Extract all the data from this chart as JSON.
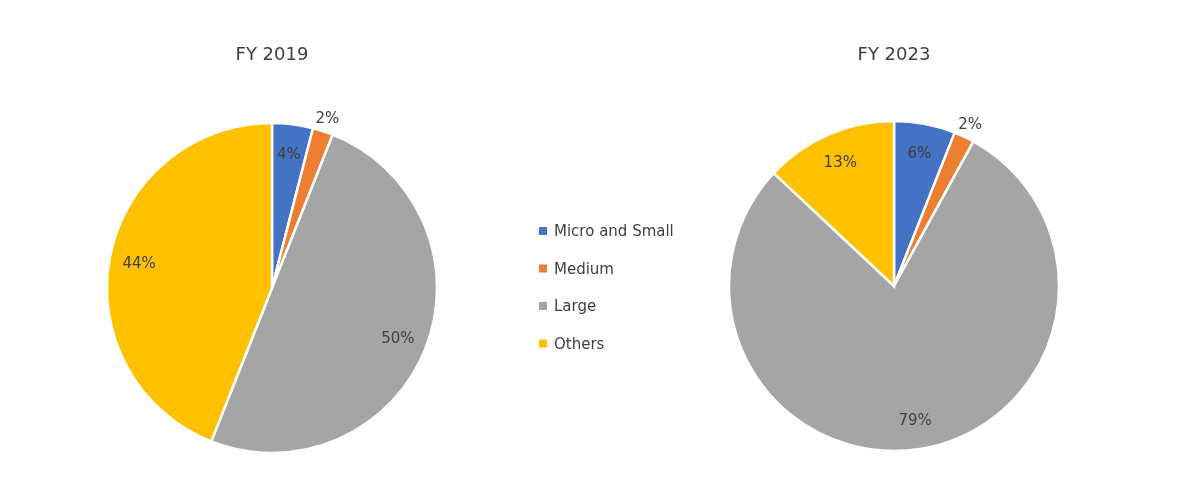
{
  "chart_data": [
    {
      "type": "pie",
      "title": "FY 2019",
      "categories": [
        "Micro and Small",
        "Medium",
        "Large",
        "Others"
      ],
      "values": [
        4,
        2,
        50,
        44
      ],
      "value_labels": [
        "4%",
        "2%",
        "50%",
        "44%"
      ],
      "colors": [
        "#4472c4",
        "#ed7d31",
        "#a5a5a5",
        "#ffc000"
      ],
      "legend": "right"
    },
    {
      "type": "pie",
      "title": "FY 2023",
      "categories": [
        null,
        null,
        null,
        null
      ],
      "values": [
        6,
        2,
        79,
        13
      ],
      "value_labels": [
        "6%",
        "2%",
        "79%",
        "13%"
      ],
      "colors": [
        "#4472c4",
        "#ed7d31",
        "#a5a5a5",
        "#ffc000"
      ]
    }
  ]
}
